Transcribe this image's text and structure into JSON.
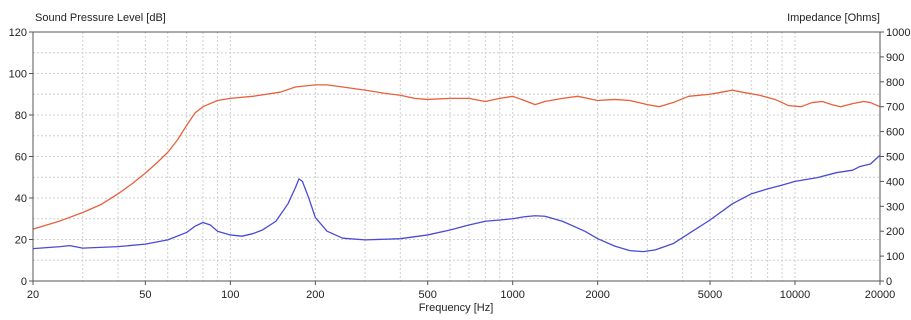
{
  "chart_data": {
    "type": "line",
    "title": "",
    "xlabel": "Frequency [Hz]",
    "ylabel_left": "Sound Pressure Level [dB]",
    "ylabel_right": "Impedance [Ohms]",
    "x_scale": "log",
    "xlim": [
      20,
      20000
    ],
    "ylim_left": [
      0,
      120
    ],
    "ylim_right": [
      0,
      1000
    ],
    "x_ticks": [
      20,
      50,
      100,
      200,
      500,
      1000,
      2000,
      5000,
      10000,
      20000
    ],
    "x_tick_labels": [
      "20",
      "50",
      "100",
      "200",
      "500",
      "1000",
      "2000",
      "5000",
      "10000",
      "20000"
    ],
    "y_left_ticks": [
      0,
      20,
      40,
      60,
      80,
      100,
      120
    ],
    "y_left_tick_labels": [
      "0",
      "20",
      "40",
      "60",
      "80",
      "100",
      "120"
    ],
    "y_right_ticks": [
      0,
      100,
      200,
      300,
      400,
      500,
      600,
      700,
      800,
      900,
      1000
    ],
    "y_right_tick_labels": [
      "0",
      "100",
      "200",
      "300",
      "400",
      "500",
      "600",
      "700",
      "800",
      "900",
      "1000"
    ],
    "grid": true,
    "series": [
      {
        "key": "spl",
        "axis": "left",
        "color": "#e8603c",
        "points": [
          [
            20,
            25
          ],
          [
            25,
            29
          ],
          [
            30,
            33
          ],
          [
            35,
            37
          ],
          [
            40,
            42
          ],
          [
            45,
            47
          ],
          [
            50,
            52
          ],
          [
            55,
            57
          ],
          [
            60,
            62
          ],
          [
            65,
            68
          ],
          [
            70,
            75
          ],
          [
            75,
            81
          ],
          [
            80,
            84
          ],
          [
            90,
            87
          ],
          [
            100,
            88
          ],
          [
            120,
            89
          ],
          [
            150,
            91
          ],
          [
            170,
            93.5
          ],
          [
            200,
            94.5
          ],
          [
            220,
            94.5
          ],
          [
            250,
            93.5
          ],
          [
            300,
            92
          ],
          [
            350,
            90.5
          ],
          [
            400,
            89.5
          ],
          [
            450,
            88
          ],
          [
            500,
            87.5
          ],
          [
            600,
            88
          ],
          [
            700,
            88
          ],
          [
            800,
            86.5
          ],
          [
            900,
            88
          ],
          [
            1000,
            89
          ],
          [
            1100,
            87
          ],
          [
            1200,
            85
          ],
          [
            1300,
            86.5
          ],
          [
            1500,
            88
          ],
          [
            1700,
            89
          ],
          [
            2000,
            87
          ],
          [
            2300,
            87.5
          ],
          [
            2600,
            87
          ],
          [
            3000,
            85
          ],
          [
            3300,
            84
          ],
          [
            3700,
            86
          ],
          [
            4200,
            89
          ],
          [
            5000,
            90
          ],
          [
            5500,
            91
          ],
          [
            6000,
            92
          ],
          [
            6500,
            91
          ],
          [
            7500,
            89.5
          ],
          [
            8500,
            87.5
          ],
          [
            9500,
            84.5
          ],
          [
            10500,
            84
          ],
          [
            11500,
            86
          ],
          [
            12500,
            86.5
          ],
          [
            13500,
            85
          ],
          [
            14500,
            84
          ],
          [
            16000,
            85.5
          ],
          [
            17500,
            86.5
          ],
          [
            18500,
            86
          ],
          [
            20000,
            84
          ]
        ]
      },
      {
        "key": "impedance",
        "axis": "right",
        "color": "#4a4ad8",
        "points": [
          [
            20,
            130
          ],
          [
            25,
            138
          ],
          [
            27,
            142
          ],
          [
            30,
            132
          ],
          [
            40,
            138
          ],
          [
            50,
            148
          ],
          [
            60,
            165
          ],
          [
            70,
            195
          ],
          [
            75,
            220
          ],
          [
            80,
            235
          ],
          [
            85,
            225
          ],
          [
            90,
            200
          ],
          [
            100,
            185
          ],
          [
            110,
            180
          ],
          [
            120,
            190
          ],
          [
            130,
            205
          ],
          [
            145,
            240
          ],
          [
            160,
            310
          ],
          [
            170,
            375
          ],
          [
            175,
            410
          ],
          [
            180,
            400
          ],
          [
            190,
            330
          ],
          [
            200,
            255
          ],
          [
            220,
            200
          ],
          [
            250,
            172
          ],
          [
            300,
            165
          ],
          [
            400,
            170
          ],
          [
            500,
            185
          ],
          [
            600,
            205
          ],
          [
            700,
            225
          ],
          [
            800,
            240
          ],
          [
            900,
            245
          ],
          [
            1000,
            250
          ],
          [
            1100,
            258
          ],
          [
            1200,
            262
          ],
          [
            1300,
            260
          ],
          [
            1500,
            240
          ],
          [
            1800,
            200
          ],
          [
            2000,
            170
          ],
          [
            2300,
            140
          ],
          [
            2600,
            122
          ],
          [
            2900,
            118
          ],
          [
            3200,
            125
          ],
          [
            3700,
            150
          ],
          [
            4200,
            190
          ],
          [
            5000,
            245
          ],
          [
            6000,
            310
          ],
          [
            7000,
            350
          ],
          [
            8000,
            370
          ],
          [
            9000,
            385
          ],
          [
            10000,
            400
          ],
          [
            12000,
            415
          ],
          [
            14000,
            435
          ],
          [
            16000,
            445
          ],
          [
            17000,
            460
          ],
          [
            18500,
            470
          ],
          [
            20000,
            505
          ]
        ]
      }
    ]
  }
}
